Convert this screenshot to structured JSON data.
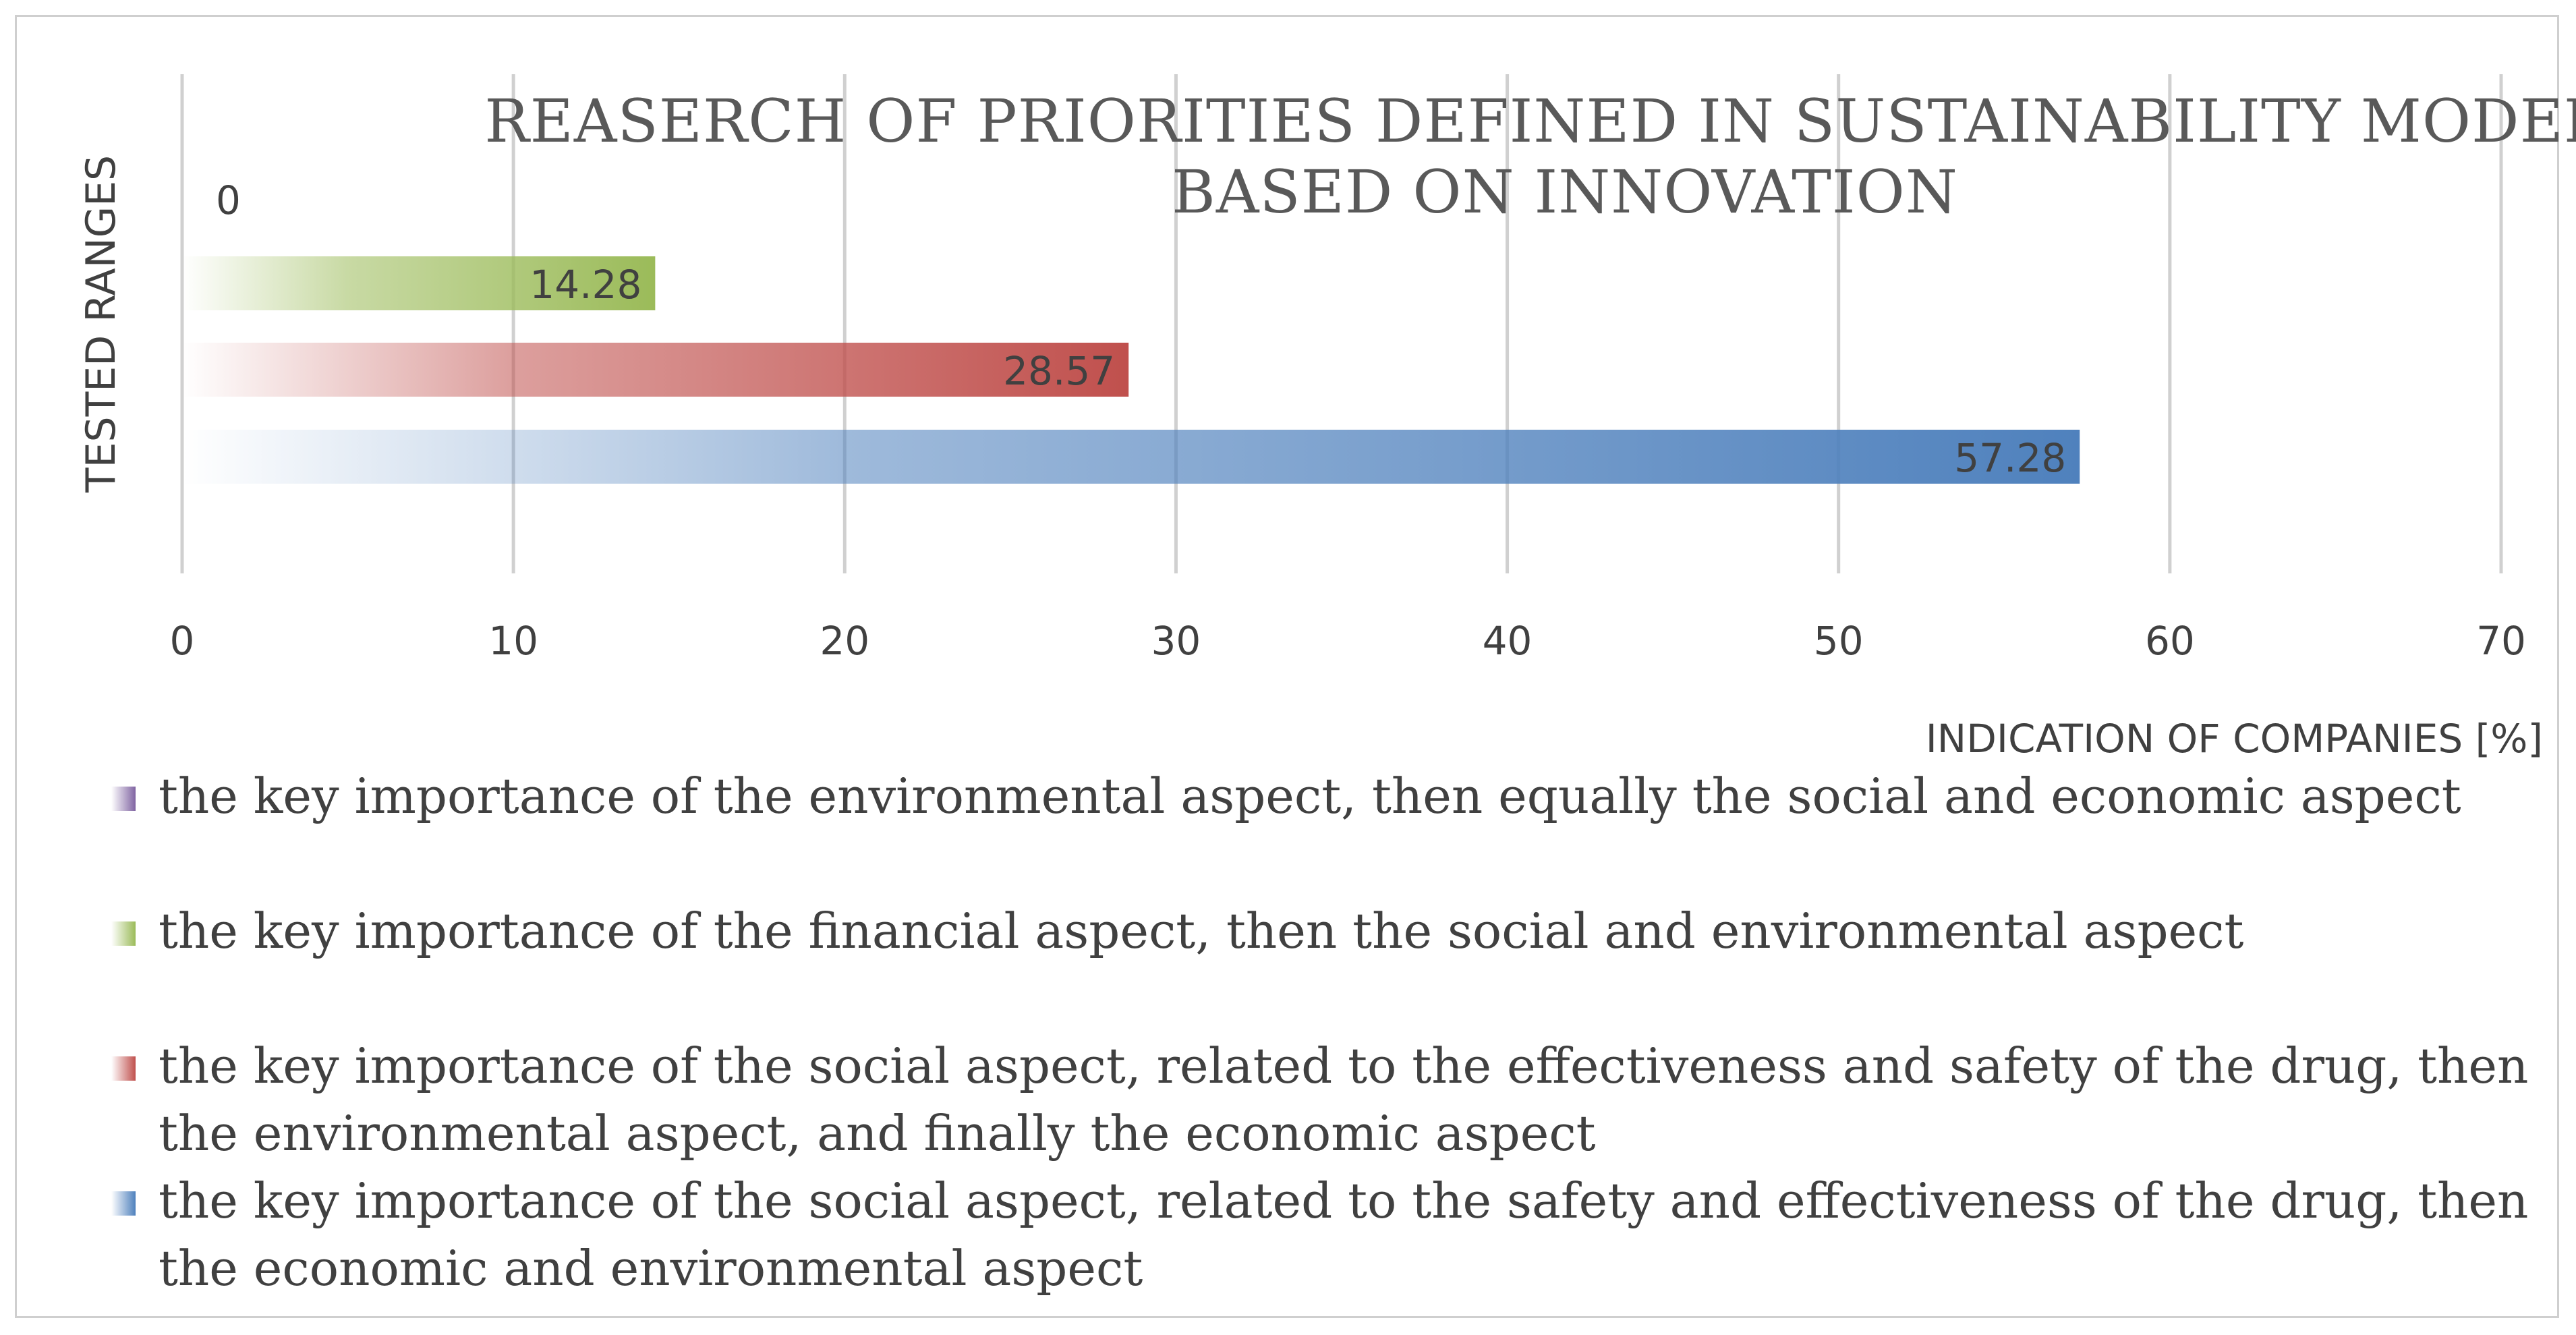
{
  "chart_data": {
    "type": "bar",
    "orientation": "horizontal",
    "title": "REASERCH OF PRIORITIES DEFINED IN SUSTAINABILITY MODELS BASED ON INNOVATION",
    "title_lines": [
      "REASERCH OF PRIORITIES DEFINED IN SUSTAINABILITY MODELS",
      "BASED ON INNOVATION"
    ],
    "xlabel": "INDICATION OF COMPANIES [%]",
    "ylabel": "TESTED RANGES",
    "xlim": [
      0,
      70
    ],
    "xticks": [
      0,
      10,
      20,
      30,
      40,
      50,
      60,
      70
    ],
    "grid": true,
    "legend_position": "bottom",
    "series": [
      {
        "name": "the key importance of the environmental aspect, then equally the social and economic aspect",
        "lines": [
          "the key importance of the environmental aspect, then equally the social and economic aspect"
        ],
        "value": 0,
        "label": "0",
        "color": "#8064a2"
      },
      {
        "name": "the key importance of the financial aspect, then the social and environmental aspect",
        "lines": [
          "the key importance of the financial aspect, then the social and environmental aspect"
        ],
        "value": 14.28,
        "label": "14.28",
        "color": "#9bbb59"
      },
      {
        "name": "the key importance of the social aspect, related to the effectiveness and safety of the drug, then the environmental aspect, and finally the economic aspect",
        "lines": [
          "the key importance of the social aspect, related to the effectiveness and safety of the drug, then",
          "the environmental aspect, and finally the economic aspect"
        ],
        "value": 28.57,
        "label": "28.57",
        "color": "#c0504d"
      },
      {
        "name": "the key importance of the social aspect, related to the safety and effectiveness of the drug, then the economic and environmental aspect",
        "lines": [
          "the key importance of the social aspect, related to the safety and effectiveness of the drug, then",
          "the economic and environmental aspect"
        ],
        "value": 57.28,
        "label": "57.28",
        "color": "#4f81bd"
      }
    ]
  }
}
